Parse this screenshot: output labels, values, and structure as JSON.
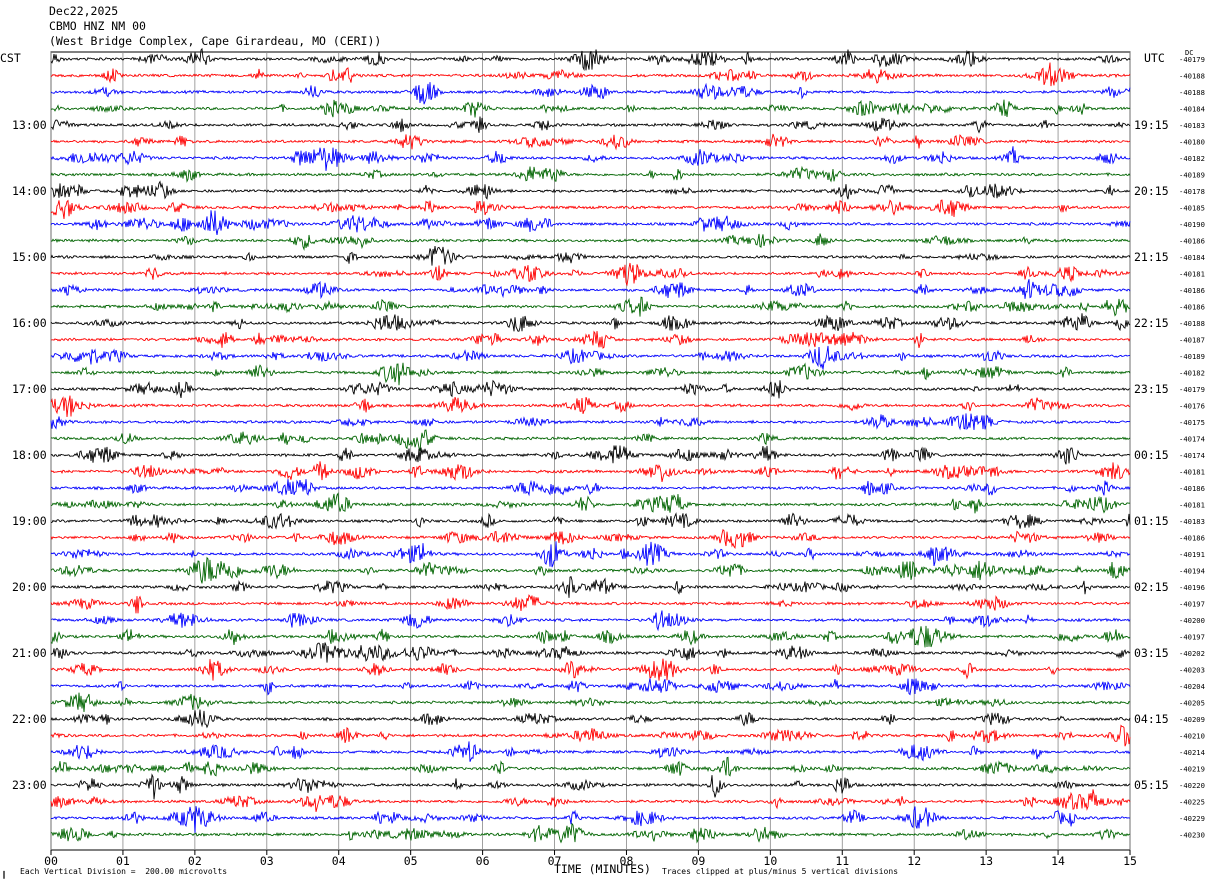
{
  "header": {
    "date": "Dec22,2025",
    "station": "CBMO HNZ NM 00",
    "location": "(West Bridge Complex, Cape Girardeau, MO (CERI))"
  },
  "left_tz": "CST",
  "right_tz": "UTC",
  "dc_label": "DC",
  "footer": {
    "scale_note": "Each Vertical Division =  200.00 microvolts",
    "clip_note": "Traces clipped at plus/minus 5 vertical divisions",
    "corner_mark": "∥"
  },
  "colors": {
    "black": "#000000",
    "red": "#ff0000",
    "blue": "#0000ff",
    "green": "#006400",
    "grid": "#888888"
  },
  "chart_data": {
    "type": "line",
    "title": "",
    "xlabel": "TIME (MINUTES)",
    "ylabel": "",
    "xlim": [
      0,
      15
    ],
    "x_ticks": [
      "00",
      "01",
      "02",
      "03",
      "04",
      "05",
      "06",
      "07",
      "08",
      "09",
      "10",
      "11",
      "12",
      "13",
      "14",
      "15"
    ],
    "trace_minutes": 15,
    "trace_colors": [
      "black",
      "red",
      "blue",
      "green"
    ],
    "left_hour_labels": [
      "13:00",
      "14:00",
      "15:00",
      "16:00",
      "17:00",
      "18:00",
      "19:00",
      "20:00",
      "21:00",
      "22:00",
      "23:00"
    ],
    "right_hour_labels": [
      "19:15",
      "20:15",
      "21:15",
      "22:15",
      "23:15",
      "00:15",
      "01:15",
      "02:15",
      "03:15",
      "04:15",
      "05:15"
    ],
    "dc_offsets": [
      -40179,
      -40188,
      -40188,
      -40184,
      -40183,
      -40180,
      -40182,
      -40189,
      -40178,
      -40185,
      -40190,
      -40186,
      -40184,
      -40181,
      -40186,
      -40186,
      -40188,
      -40187,
      -40189,
      -40182,
      -40179,
      -40176,
      -40175,
      -40174,
      -40174,
      -40181,
      -40186,
      -40181,
      -40183,
      -40186,
      -40191,
      -40194,
      -40196,
      -40197,
      -40200,
      -40197,
      -40202,
      -40203,
      -40204,
      -40205,
      -40209,
      -40210,
      -40214,
      -40219,
      -40220,
      -40225,
      -40229,
      -40230
    ]
  }
}
